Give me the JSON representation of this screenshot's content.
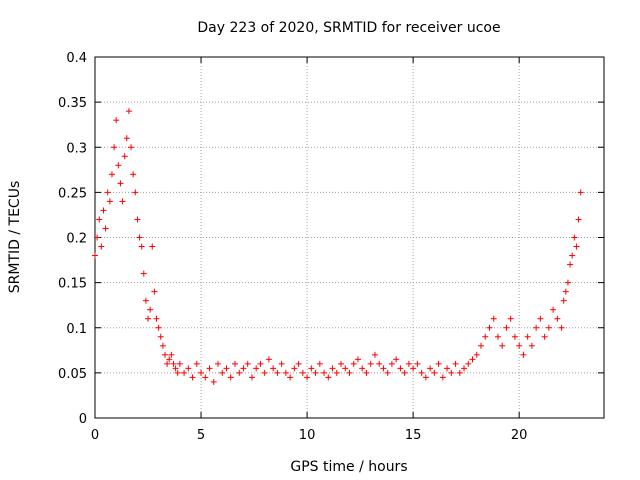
{
  "chart_data": {
    "type": "scatter",
    "title": "Day 223 of 2020, SRMTID for receiver ucoe",
    "xlabel": "GPS time / hours",
    "ylabel": "SRMTID / TECUs",
    "xlim": [
      0,
      24
    ],
    "ylim": [
      0,
      0.4
    ],
    "xticks": [
      "0",
      "5",
      "10",
      "15",
      "20"
    ],
    "yticks": [
      "0",
      "0.05",
      "0.1",
      "0.15",
      "0.2",
      "0.25",
      "0.3",
      "0.35",
      "0.4"
    ],
    "grid": true,
    "marker": "+",
    "color": "#ff0000",
    "series": [
      {
        "name": "SRMTID",
        "x": [
          0.0,
          0.1,
          0.2,
          0.3,
          0.4,
          0.5,
          0.6,
          0.7,
          0.8,
          0.9,
          1.0,
          1.1,
          1.2,
          1.3,
          1.4,
          1.5,
          1.6,
          1.7,
          1.8,
          1.9,
          2.0,
          2.1,
          2.2,
          2.3,
          2.4,
          2.5,
          2.6,
          2.7,
          2.8,
          2.9,
          3.0,
          3.1,
          3.2,
          3.3,
          3.4,
          3.5,
          3.6,
          3.7,
          3.8,
          3.9,
          4.0,
          4.2,
          4.4,
          4.6,
          4.8,
          5.0,
          5.2,
          5.4,
          5.6,
          5.8,
          6.0,
          6.2,
          6.4,
          6.6,
          6.8,
          7.0,
          7.2,
          7.4,
          7.6,
          7.8,
          8.0,
          8.2,
          8.4,
          8.6,
          8.8,
          9.0,
          9.2,
          9.4,
          9.6,
          9.8,
          10.0,
          10.2,
          10.4,
          10.6,
          10.8,
          11.0,
          11.2,
          11.4,
          11.6,
          11.8,
          12.0,
          12.2,
          12.4,
          12.6,
          12.8,
          13.0,
          13.2,
          13.4,
          13.6,
          13.8,
          14.0,
          14.2,
          14.4,
          14.6,
          14.8,
          15.0,
          15.2,
          15.4,
          15.6,
          15.8,
          16.0,
          16.2,
          16.4,
          16.6,
          16.8,
          17.0,
          17.2,
          17.4,
          17.6,
          17.8,
          18.0,
          18.2,
          18.4,
          18.6,
          18.8,
          19.0,
          19.2,
          19.4,
          19.6,
          19.8,
          20.0,
          20.2,
          20.4,
          20.6,
          20.8,
          21.0,
          21.2,
          21.4,
          21.6,
          21.8,
          22.0,
          22.1,
          22.2,
          22.3,
          22.4,
          22.5,
          22.6,
          22.7,
          22.8,
          22.9
        ],
        "y": [
          0.18,
          0.2,
          0.22,
          0.19,
          0.23,
          0.21,
          0.25,
          0.24,
          0.27,
          0.3,
          0.33,
          0.28,
          0.26,
          0.24,
          0.29,
          0.31,
          0.34,
          0.3,
          0.27,
          0.25,
          0.22,
          0.2,
          0.19,
          0.16,
          0.13,
          0.11,
          0.12,
          0.19,
          0.14,
          0.11,
          0.1,
          0.09,
          0.08,
          0.07,
          0.06,
          0.065,
          0.07,
          0.06,
          0.055,
          0.05,
          0.06,
          0.05,
          0.055,
          0.045,
          0.06,
          0.05,
          0.045,
          0.055,
          0.04,
          0.06,
          0.05,
          0.055,
          0.045,
          0.06,
          0.05,
          0.055,
          0.06,
          0.045,
          0.055,
          0.06,
          0.05,
          0.065,
          0.055,
          0.05,
          0.06,
          0.05,
          0.045,
          0.055,
          0.06,
          0.05,
          0.045,
          0.055,
          0.05,
          0.06,
          0.05,
          0.045,
          0.055,
          0.05,
          0.06,
          0.055,
          0.05,
          0.06,
          0.065,
          0.055,
          0.05,
          0.06,
          0.07,
          0.06,
          0.055,
          0.05,
          0.06,
          0.065,
          0.055,
          0.05,
          0.06,
          0.055,
          0.06,
          0.05,
          0.045,
          0.055,
          0.05,
          0.06,
          0.045,
          0.055,
          0.05,
          0.06,
          0.05,
          0.055,
          0.06,
          0.065,
          0.07,
          0.08,
          0.09,
          0.1,
          0.11,
          0.09,
          0.08,
          0.1,
          0.11,
          0.09,
          0.08,
          0.07,
          0.09,
          0.08,
          0.1,
          0.11,
          0.09,
          0.1,
          0.12,
          0.11,
          0.1,
          0.13,
          0.14,
          0.15,
          0.17,
          0.18,
          0.2,
          0.19,
          0.22,
          0.25
        ]
      }
    ]
  }
}
